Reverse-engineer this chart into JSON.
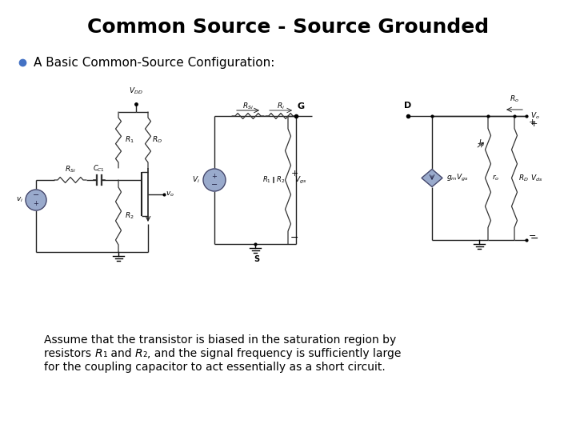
{
  "title": "Common Source - Source Grounded",
  "bullet_text": "A Basic Common-Source Configuration:",
  "bullet_color": "#4472C4",
  "title_fontsize": 18,
  "bullet_fontsize": 11,
  "body_fontsize": 10,
  "body_line1": "Assume that the transistor is biased in the saturation region by",
  "body_line3": "for the coupling capacitor to act essentially as a short circuit.",
  "background_color": "#ffffff",
  "wire_color": "#222222",
  "resistor_color": "#333333",
  "source_fill": "#99AACC",
  "diamond_fill": "#99AACC"
}
